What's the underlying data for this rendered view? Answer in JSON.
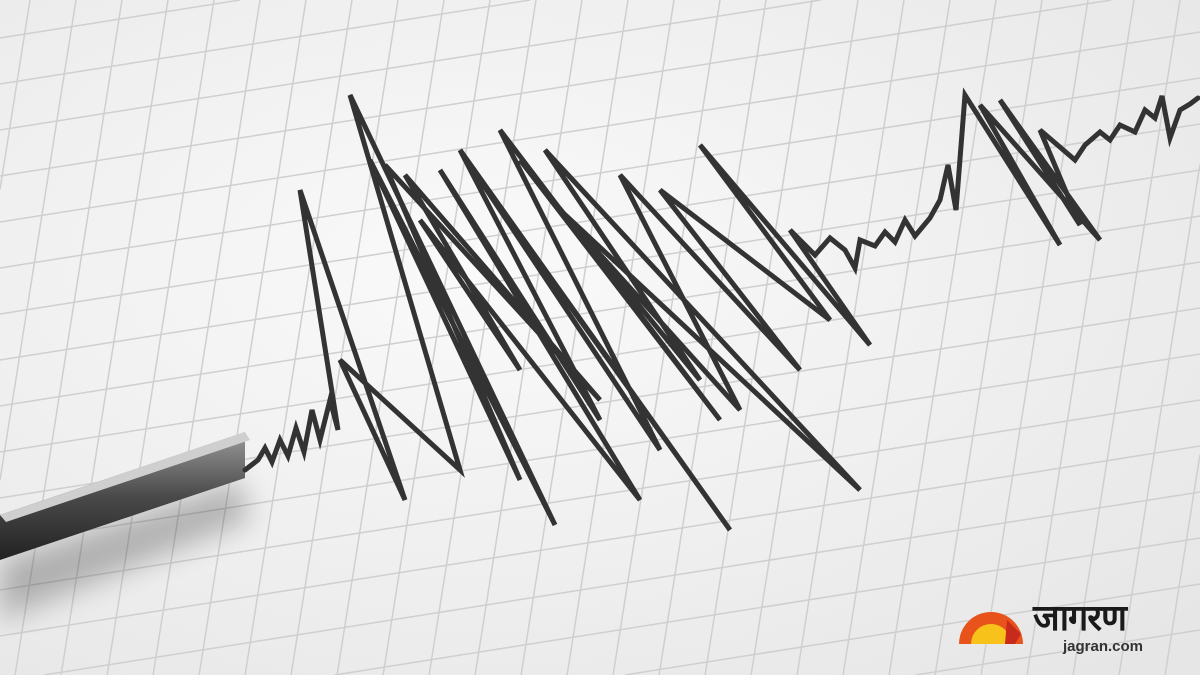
{
  "image": {
    "subject": "seismograph",
    "colors": {
      "paper": "#f4f4f4",
      "grid": "#cfcfcf",
      "trace": "#333333",
      "arm": "#555555"
    }
  },
  "logo": {
    "hindi_text": "जागरण",
    "url_text": "jagran.com",
    "colors": {
      "sun_outer": "#e8531c",
      "sun_inner": "#f7c31a"
    }
  }
}
